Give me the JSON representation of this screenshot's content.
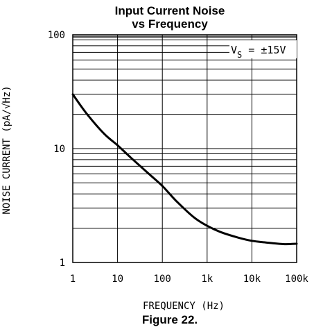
{
  "chart_data": {
    "type": "line",
    "title_line1": "Input Current Noise",
    "title_line2": "vs Frequency",
    "xlabel": "FREQUENCY (Hz)",
    "ylabel": "NOISE CURRENT (pA/√Hz)",
    "x_scale": "log",
    "y_scale": "log",
    "xlim": [
      1,
      100000
    ],
    "ylim": [
      1,
      100
    ],
    "x_ticks": [
      {
        "value": 1,
        "label": "1"
      },
      {
        "value": 10,
        "label": "10"
      },
      {
        "value": 100,
        "label": "100"
      },
      {
        "value": 1000,
        "label": "1k"
      },
      {
        "value": 10000,
        "label": "10k"
      },
      {
        "value": 100000,
        "label": "100k"
      }
    ],
    "y_ticks": [
      {
        "value": 1,
        "label": "1"
      },
      {
        "value": 10,
        "label": "10"
      },
      {
        "value": 100,
        "label": "100"
      }
    ],
    "grid": true,
    "annotation": {
      "main": "V",
      "sub": "S",
      "rest": " = ±15V"
    },
    "series": [
      {
        "color": "#000000",
        "points": [
          [
            1,
            30
          ],
          [
            2,
            20.5
          ],
          [
            5,
            13.5
          ],
          [
            10,
            10.7
          ],
          [
            20,
            8.3
          ],
          [
            50,
            6.0
          ],
          [
            100,
            4.7
          ],
          [
            200,
            3.5
          ],
          [
            500,
            2.5
          ],
          [
            1000,
            2.1
          ],
          [
            2000,
            1.85
          ],
          [
            5000,
            1.65
          ],
          [
            10000,
            1.55
          ],
          [
            20000,
            1.5
          ],
          [
            50000,
            1.45
          ],
          [
            100000,
            1.46
          ]
        ]
      }
    ]
  },
  "caption": "Figure 22."
}
